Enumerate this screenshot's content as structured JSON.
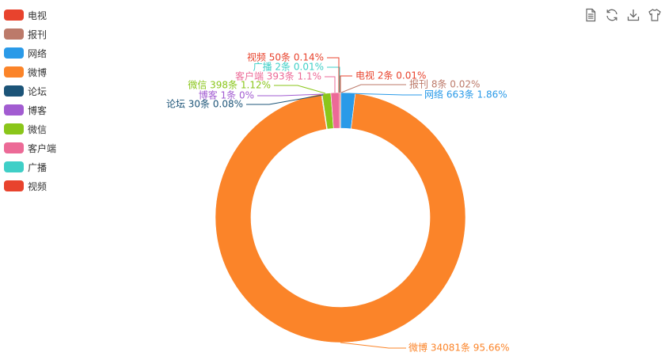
{
  "chart_data": {
    "type": "pie",
    "title": "",
    "legend_position": "top-left",
    "unit": "条",
    "series": [
      {
        "name": "电视",
        "value": 2,
        "percent": "0.01%",
        "color": "#e8432d",
        "label": "电视 2条  0.01%"
      },
      {
        "name": "报刊",
        "value": 8,
        "percent": "0.02%",
        "color": "#bc7a6a",
        "label": "报刊 8条  0.02%"
      },
      {
        "name": "网络",
        "value": 663,
        "percent": "1.86%",
        "color": "#2a9ae8",
        "label": "网络 663条  1.86%"
      },
      {
        "name": "微博",
        "value": 34081,
        "percent": "95.66%",
        "color": "#fb8429",
        "label": "微博 34081条  95.66%"
      },
      {
        "name": "论坛",
        "value": 30,
        "percent": "0.08%",
        "color": "#1c5478",
        "label": "论坛 30条  0.08%"
      },
      {
        "name": "博客",
        "value": 1,
        "percent": "0%",
        "color": "#a25cd1",
        "label": "博客 1条  0%"
      },
      {
        "name": "微信",
        "value": 398,
        "percent": "1.12%",
        "color": "#8ac61a",
        "label": "微信 398条  1.12%"
      },
      {
        "name": "客户端",
        "value": 393,
        "percent": "1.1%",
        "color": "#ec6a97",
        "label": "客户端 393条  1.1%"
      },
      {
        "name": "广播",
        "value": 2,
        "percent": "0.01%",
        "color": "#3fcfc7",
        "label": "广播 2条  0.01%"
      },
      {
        "name": "视频",
        "value": 50,
        "percent": "0.14%",
        "color": "#e8432d",
        "label": "视频 50条  0.14%"
      }
    ]
  },
  "toolbox": {
    "icons": [
      "data-view-icon",
      "refresh-icon",
      "download-icon",
      "shirt-icon"
    ]
  }
}
